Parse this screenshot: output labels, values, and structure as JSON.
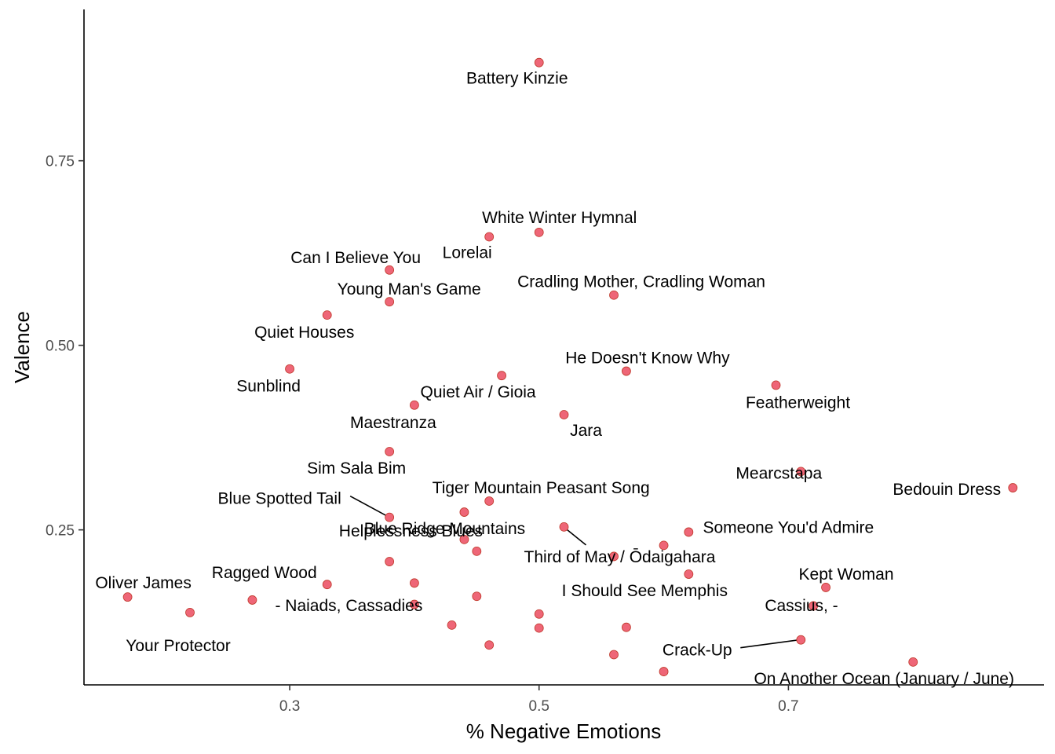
{
  "chart_data": {
    "type": "scatter",
    "xlabel": "% Negative Emotions",
    "ylabel": "Valence",
    "xlim": [
      0.135,
      0.905
    ],
    "ylim": [
      0.04,
      0.955
    ],
    "x_ticks": [
      0.3,
      0.5,
      0.7
    ],
    "x_tick_labels": [
      "0.3",
      "0.5",
      "0.7"
    ],
    "y_ticks": [
      0.25,
      0.5,
      0.75
    ],
    "y_tick_labels": [
      "0.25",
      "0.50",
      "0.75"
    ],
    "grid": false,
    "legend": "none",
    "point_color": "#EE6677",
    "points": [
      {
        "x": 0.5,
        "y": 0.883,
        "label": "Battery Kinzie"
      },
      {
        "x": 0.5,
        "y": 0.653,
        "label": "White Winter Hymnal"
      },
      {
        "x": 0.46,
        "y": 0.647,
        "label": "Lorelai"
      },
      {
        "x": 0.38,
        "y": 0.602,
        "label": "Can I Believe You"
      },
      {
        "x": 0.38,
        "y": 0.559,
        "label": "Young Man's Game"
      },
      {
        "x": 0.56,
        "y": 0.568,
        "label": "Cradling Mother, Cradling Woman"
      },
      {
        "x": 0.33,
        "y": 0.541,
        "label": "Quiet Houses"
      },
      {
        "x": 0.3,
        "y": 0.468,
        "label": "Sunblind"
      },
      {
        "x": 0.57,
        "y": 0.465,
        "label": "He Doesn't Know Why"
      },
      {
        "x": 0.47,
        "y": 0.459,
        "label": "Quiet Air / Gioia"
      },
      {
        "x": 0.69,
        "y": 0.446,
        "label": "Featherweight"
      },
      {
        "x": 0.4,
        "y": 0.419,
        "label": "Maestranza"
      },
      {
        "x": 0.52,
        "y": 0.406,
        "label": "Jara"
      },
      {
        "x": 0.38,
        "y": 0.356,
        "label": "Sim Sala Bim"
      },
      {
        "x": 0.71,
        "y": 0.329,
        "label": "Mearcstapa"
      },
      {
        "x": 0.88,
        "y": 0.307,
        "label": "Bedouin Dress"
      },
      {
        "x": 0.46,
        "y": 0.289,
        "label": "Tiger Mountain Peasant Song"
      },
      {
        "x": 0.38,
        "y": 0.267,
        "label": "Blue Spotted Tail"
      },
      {
        "x": 0.44,
        "y": 0.274,
        "label": "Blue Ridge Mountains"
      },
      {
        "x": 0.52,
        "y": 0.254,
        "label": "Third of May / Ōdaigahara"
      },
      {
        "x": 0.62,
        "y": 0.247,
        "label": "Someone You'd Admire"
      },
      {
        "x": 0.44,
        "y": 0.237,
        "label": "Helplessness Blues"
      },
      {
        "x": 0.6,
        "y": 0.229,
        "label": ""
      },
      {
        "x": 0.45,
        "y": 0.221,
        "label": ""
      },
      {
        "x": 0.56,
        "y": 0.214,
        "label": ""
      },
      {
        "x": 0.38,
        "y": 0.207,
        "label": ""
      },
      {
        "x": 0.62,
        "y": 0.19,
        "label": "I Should See Memphis"
      },
      {
        "x": 0.33,
        "y": 0.176,
        "label": "Ragged Wood"
      },
      {
        "x": 0.4,
        "y": 0.178,
        "label": ""
      },
      {
        "x": 0.73,
        "y": 0.172,
        "label": "Kept Woman"
      },
      {
        "x": 0.17,
        "y": 0.159,
        "label": "Oliver James"
      },
      {
        "x": 0.27,
        "y": 0.155,
        "label": "- Naiads, Cassadies"
      },
      {
        "x": 0.45,
        "y": 0.16,
        "label": ""
      },
      {
        "x": 0.4,
        "y": 0.149,
        "label": ""
      },
      {
        "x": 0.72,
        "y": 0.147,
        "label": ""
      },
      {
        "x": 0.22,
        "y": 0.138,
        "label": "Your Protector"
      },
      {
        "x": 0.5,
        "y": 0.136,
        "label": ""
      },
      {
        "x": 0.43,
        "y": 0.121,
        "label": ""
      },
      {
        "x": 0.5,
        "y": 0.117,
        "label": ""
      },
      {
        "x": 0.57,
        "y": 0.118,
        "label": ""
      },
      {
        "x": 0.71,
        "y": 0.101,
        "label": "Crack-Up"
      },
      {
        "x": 0.46,
        "y": 0.094,
        "label": ""
      },
      {
        "x": 0.56,
        "y": 0.081,
        "label": ""
      },
      {
        "x": 0.8,
        "y": 0.071,
        "label": "On Another Ocean (January / June)"
      },
      {
        "x": 0.6,
        "y": 0.058,
        "label": ""
      }
    ],
    "free_labels": [
      "Cassius, -"
    ]
  }
}
